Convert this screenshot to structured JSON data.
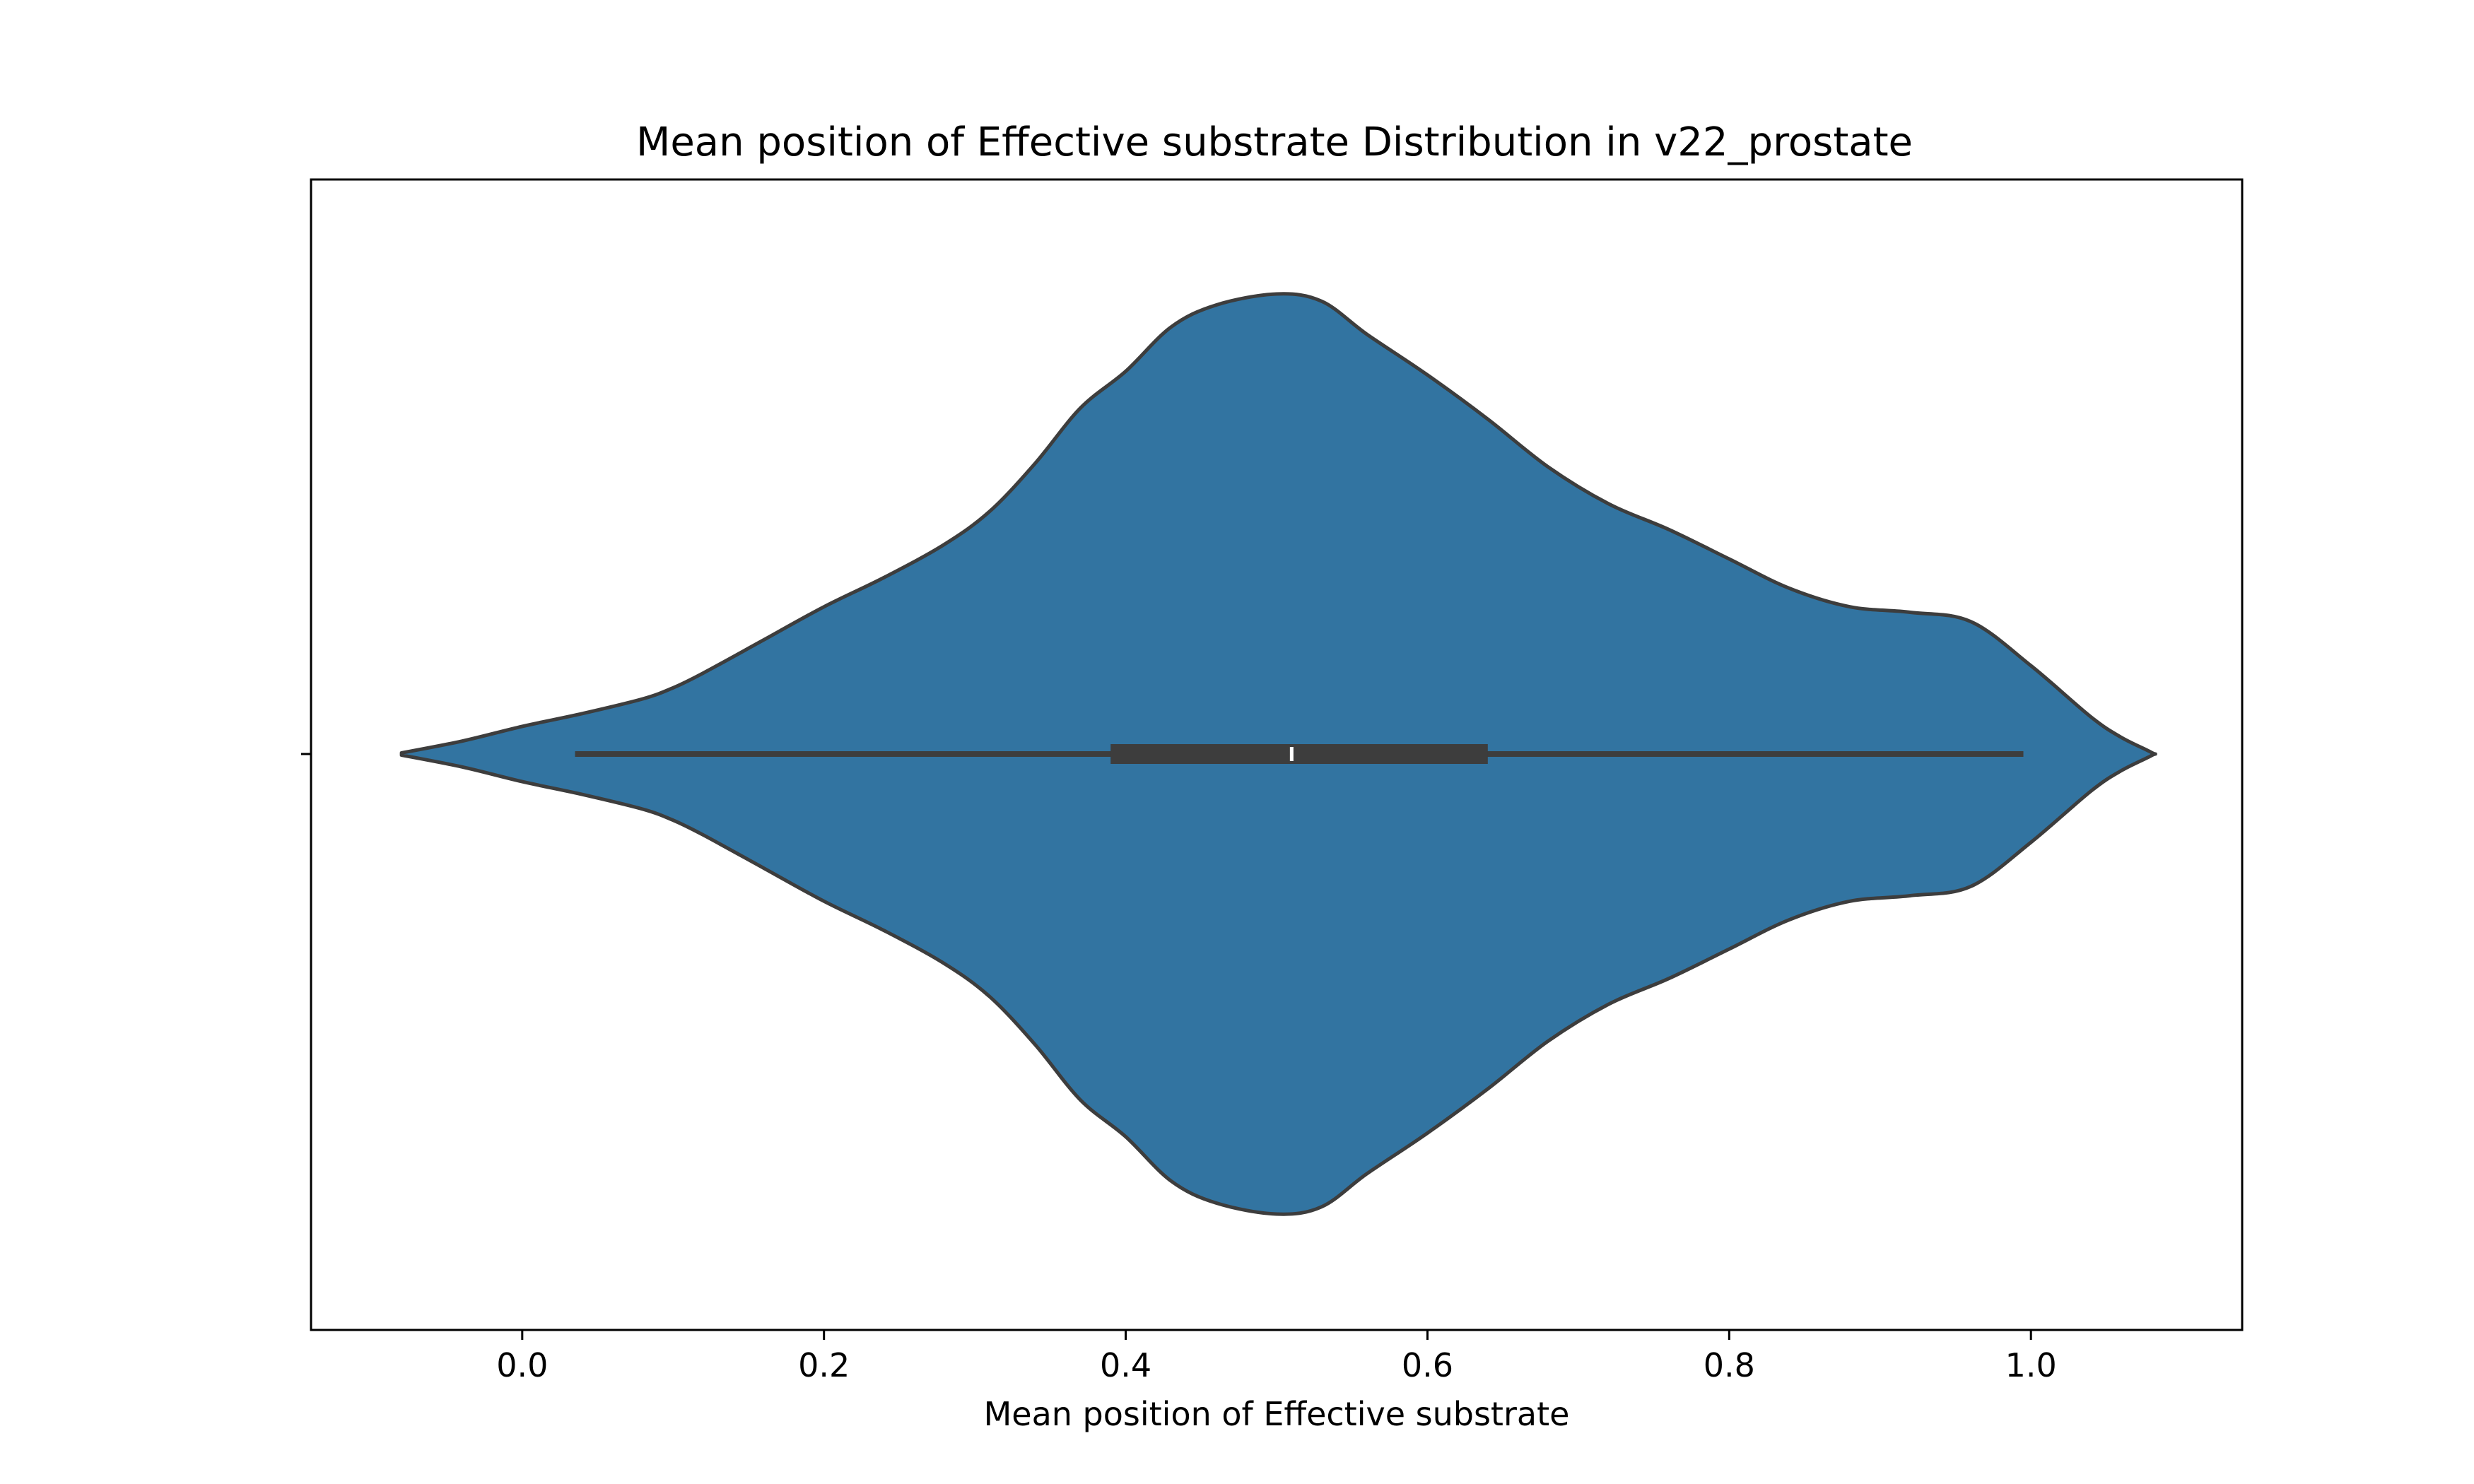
{
  "chart_data": {
    "type": "violin",
    "title": "Mean position of Effective substrate Distribution in v22_prostate",
    "xlabel": "Mean position of Effective substrate",
    "ylabel": "",
    "xlim": [
      -0.14,
      1.14
    ],
    "xticks": [
      0.0,
      0.2,
      0.4,
      0.6,
      0.8,
      1.0
    ],
    "xtick_labels": [
      "0.0",
      "0.2",
      "0.4",
      "0.6",
      "0.8",
      "1.0"
    ],
    "fill_color": "#3274a1",
    "edge_color": "#3d3d3d",
    "grid": false,
    "violin": {
      "range": [
        -0.08,
        1.08
      ],
      "density_profile": [
        [
          -0.08,
          0.003
        ],
        [
          -0.04,
          0.035
        ],
        [
          0.0,
          0.075
        ],
        [
          0.04,
          0.11
        ],
        [
          0.08,
          0.15
        ],
        [
          0.1,
          0.18
        ],
        [
          0.12,
          0.22
        ],
        [
          0.16,
          0.31
        ],
        [
          0.2,
          0.4
        ],
        [
          0.24,
          0.48
        ],
        [
          0.28,
          0.57
        ],
        [
          0.31,
          0.66
        ],
        [
          0.34,
          0.79
        ],
        [
          0.37,
          0.94
        ],
        [
          0.4,
          1.04
        ],
        [
          0.43,
          1.16
        ],
        [
          0.46,
          1.22
        ],
        [
          0.5,
          1.25
        ],
        [
          0.53,
          1.23
        ],
        [
          0.56,
          1.14
        ],
        [
          0.6,
          1.03
        ],
        [
          0.64,
          0.91
        ],
        [
          0.68,
          0.78
        ],
        [
          0.72,
          0.68
        ],
        [
          0.76,
          0.61
        ],
        [
          0.8,
          0.53
        ],
        [
          0.84,
          0.45
        ],
        [
          0.88,
          0.4
        ],
        [
          0.92,
          0.385
        ],
        [
          0.96,
          0.36
        ],
        [
          1.0,
          0.24
        ],
        [
          1.04,
          0.1
        ],
        [
          1.06,
          0.045
        ],
        [
          1.08,
          0.004
        ]
      ]
    },
    "box": {
      "whisker_low": 0.035,
      "q1": 0.39,
      "median": 0.51,
      "q3": 0.64,
      "whisker_high": 0.995
    }
  }
}
